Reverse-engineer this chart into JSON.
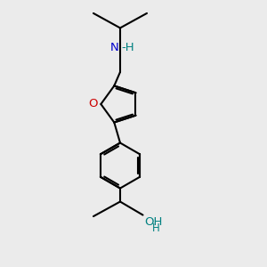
{
  "bg_color": "#ebebeb",
  "bond_color": "#000000",
  "N_color": "#0000cc",
  "O_color": "#cc0000",
  "teal_color": "#008080",
  "line_width": 1.5,
  "font_size": 9.5,
  "fig_w": 3.0,
  "fig_h": 3.0,
  "dpi": 100,
  "xlim": [
    2.5,
    7.5
  ],
  "ylim": [
    0.3,
    10.2
  ]
}
